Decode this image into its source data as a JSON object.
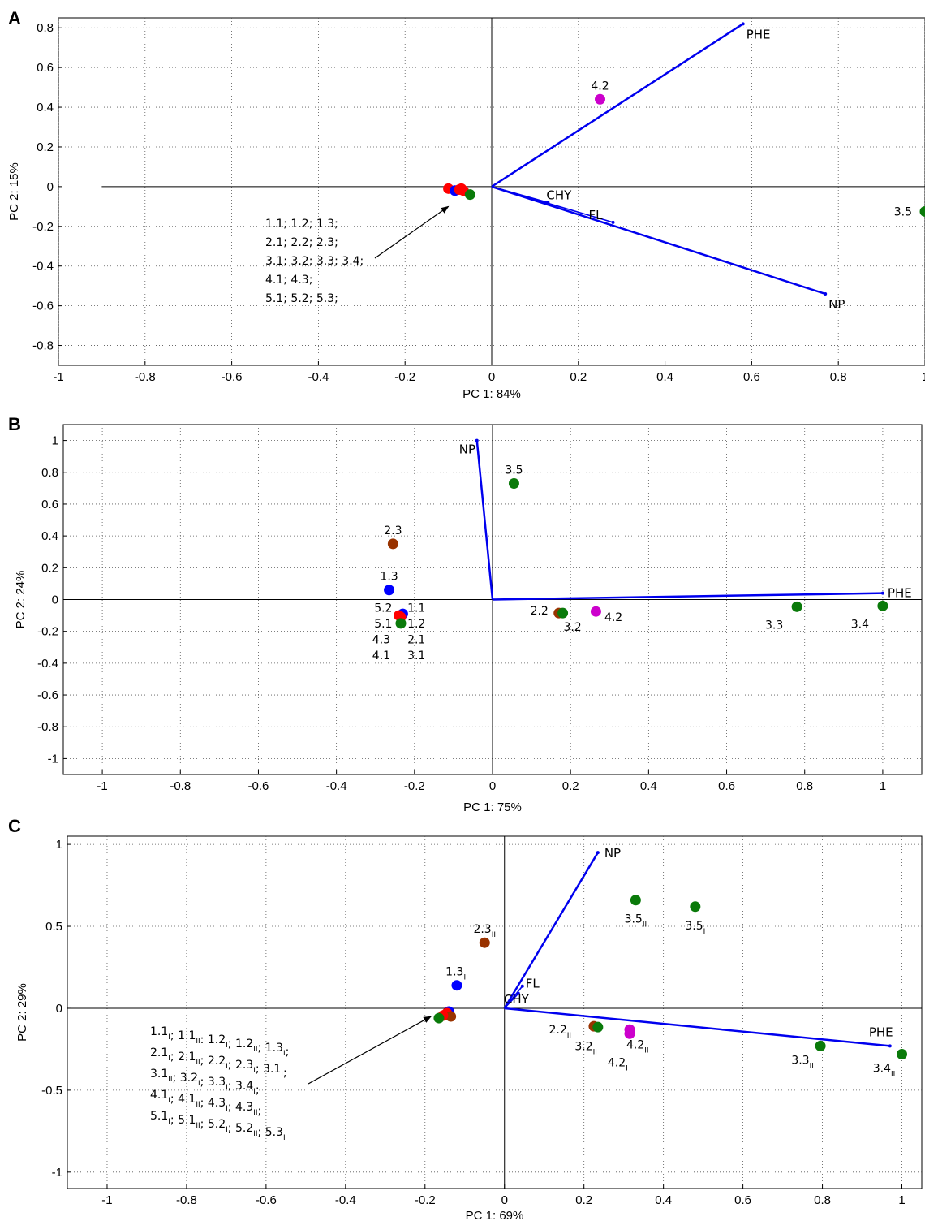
{
  "colors": {
    "red": "#ff0000",
    "blue": "#0000ff",
    "green": "#0a7a0a",
    "brown": "#993300",
    "magenta": "#cc00cc",
    "vector": "#0000ee"
  },
  "chart_data": [
    {
      "panel": "A",
      "type": "scatter",
      "xlabel": "PC 1: 84%",
      "ylabel": "PC 2: 15%",
      "xlim": [
        -1,
        1
      ],
      "ylim": [
        -0.9,
        0.85
      ],
      "xticks": [
        "-1",
        "-0.8",
        "-0.6",
        "-0.4",
        "-0.2",
        "0",
        "0.2",
        "0.4",
        "0.6",
        "0.8",
        "1"
      ],
      "xtick_values": [
        -1,
        -0.8,
        -0.6,
        -0.4,
        -0.2,
        0,
        0.2,
        0.4,
        0.6,
        0.8,
        1
      ],
      "yticks": [
        "-0.8",
        "-0.6",
        "-0.4",
        "-0.2",
        "0",
        "0.2",
        "0.4",
        "0.6",
        "0.8"
      ],
      "ytick_values": [
        -0.8,
        -0.6,
        -0.4,
        -0.2,
        0,
        0.2,
        0.4,
        0.6,
        0.8
      ],
      "hline_from": -0.9,
      "grid": true,
      "vectors": [
        {
          "label": "PHE",
          "x": 0.58,
          "y": 0.82,
          "dot": false
        },
        {
          "label": "NP",
          "x": 0.77,
          "y": -0.54,
          "dot": false
        },
        {
          "label": "CHY",
          "x": 0.13,
          "y": -0.08,
          "dot": true
        },
        {
          "label": "FL",
          "x": 0.28,
          "y": -0.18,
          "dot": true
        }
      ],
      "points": [
        {
          "x": -0.1,
          "y": -0.01,
          "color": "red"
        },
        {
          "x": -0.085,
          "y": -0.02,
          "color": "blue"
        },
        {
          "x": -0.075,
          "y": -0.015,
          "color": "red"
        },
        {
          "x": -0.065,
          "y": -0.02,
          "color": "red"
        },
        {
          "x": -0.05,
          "y": -0.04,
          "color": "green"
        },
        {
          "x": -0.07,
          "y": -0.01,
          "color": "red"
        },
        {
          "x": 0.25,
          "y": 0.44,
          "color": "magenta",
          "label": "4.2"
        },
        {
          "x": 1.0,
          "y": -0.125,
          "color": "green",
          "label": "3.5"
        }
      ],
      "annotation": [
        "1.1; 1.2; 1.3;",
        "2.1; 2.2; 2.3;",
        "3.1; 3.2; 3.3; 3.4;",
        "4.1; 4.3;",
        "5.1; 5.2; 5.3;"
      ]
    },
    {
      "panel": "B",
      "type": "scatter",
      "xlabel": "PC 1: 75%",
      "ylabel": "PC 2: 24%",
      "xlim": [
        -1.1,
        1.1
      ],
      "ylim": [
        -1.1,
        1.1
      ],
      "xticks": [
        "-1",
        "-0.8",
        "-0.6",
        "-0.4",
        "-0.2",
        "0",
        "0.2",
        "0.4",
        "0.6",
        "0.8",
        "1"
      ],
      "xtick_values": [
        -1,
        -0.8,
        -0.6,
        -0.4,
        -0.2,
        0,
        0.2,
        0.4,
        0.6,
        0.8,
        1
      ],
      "yticks": [
        "-1",
        "-0.8",
        "-0.6",
        "-0.4",
        "-0.2",
        "0",
        "0.2",
        "0.4",
        "0.6",
        "0.8",
        "1"
      ],
      "ytick_values": [
        -1,
        -0.8,
        -0.6,
        -0.4,
        -0.2,
        0,
        0.2,
        0.4,
        0.6,
        0.8,
        1
      ],
      "grid": true,
      "vectors": [
        {
          "label": "NP",
          "x": -0.04,
          "y": 1.0,
          "dot": false
        },
        {
          "label": "PHE",
          "x": 1.0,
          "y": 0.04,
          "dot": false
        }
      ],
      "points": [
        {
          "x": 0.055,
          "y": 0.73,
          "color": "green",
          "label": "3.5"
        },
        {
          "x": -0.255,
          "y": 0.35,
          "color": "brown",
          "label": "2.3"
        },
        {
          "x": -0.265,
          "y": 0.06,
          "color": "blue",
          "label": "1.3"
        },
        {
          "x": -0.23,
          "y": -0.09,
          "color": "blue"
        },
        {
          "x": -0.24,
          "y": -0.1,
          "color": "red"
        },
        {
          "x": -0.235,
          "y": -0.11,
          "color": "red"
        },
        {
          "x": -0.235,
          "y": -0.15,
          "color": "green"
        },
        {
          "x": 0.17,
          "y": -0.085,
          "color": "brown"
        },
        {
          "x": 0.18,
          "y": -0.085,
          "color": "green"
        },
        {
          "x": 0.265,
          "y": -0.075,
          "color": "magenta"
        },
        {
          "x": 0.78,
          "y": -0.045,
          "color": "green",
          "label": "3.3"
        },
        {
          "x": 1.0,
          "y": -0.04,
          "color": "green",
          "label": "3.4"
        }
      ],
      "labels": [
        {
          "text": "5.2",
          "x": -0.28,
          "y": -0.05
        },
        {
          "text": "5.1",
          "x": -0.28,
          "y": -0.15
        },
        {
          "text": "4.3",
          "x": -0.285,
          "y": -0.25
        },
        {
          "text": "4.1",
          "x": -0.285,
          "y": -0.35
        },
        {
          "text": "1.1",
          "x": -0.195,
          "y": -0.05
        },
        {
          "text": "1.2",
          "x": -0.195,
          "y": -0.15
        },
        {
          "text": "2.1",
          "x": -0.195,
          "y": -0.25
        },
        {
          "text": "3.1",
          "x": -0.195,
          "y": -0.35
        },
        {
          "text": "2.2",
          "x": 0.12,
          "y": -0.07
        },
        {
          "text": "3.2",
          "x": 0.205,
          "y": -0.17
        },
        {
          "text": "4.2",
          "x": 0.31,
          "y": -0.11
        }
      ]
    },
    {
      "panel": "C",
      "type": "scatter",
      "xlabel": "PC 1: 69%",
      "ylabel": "PC 2: 29%",
      "xlim": [
        -1.1,
        1.05
      ],
      "ylim": [
        -1.1,
        1.05
      ],
      "xticks": [
        "-1",
        "-0.8",
        "-0.6",
        "-0.4",
        "-0.2",
        "0",
        "0.2",
        "0.4",
        "0.6",
        "0.8",
        "1"
      ],
      "xtick_values": [
        -1,
        -0.8,
        -0.6,
        -0.4,
        -0.2,
        0,
        0.2,
        0.4,
        0.6,
        0.8,
        1
      ],
      "yticks": [
        "-1",
        "-0.5",
        "0",
        "0.5",
        "1"
      ],
      "ytick_values": [
        -1,
        -0.5,
        0,
        0.5,
        1
      ],
      "grid": true,
      "vectors": [
        {
          "label": "NP",
          "x": 0.235,
          "y": 0.95,
          "dot": false
        },
        {
          "label": "FL",
          "x": 0.045,
          "y": 0.135,
          "dot": true
        },
        {
          "label": "CHY",
          "x": 0.035,
          "y": 0.09,
          "dot": true
        },
        {
          "label": "PHE",
          "x": 0.97,
          "y": -0.23,
          "dot": false
        }
      ],
      "points": [
        {
          "x": 0.33,
          "y": 0.66,
          "color": "green",
          "label": "3.5",
          "sub": "II"
        },
        {
          "x": 0.48,
          "y": 0.62,
          "color": "green",
          "label": "3.5",
          "sub": "I"
        },
        {
          "x": -0.05,
          "y": 0.4,
          "color": "brown",
          "label": "2.3",
          "sub": "II"
        },
        {
          "x": -0.12,
          "y": 0.14,
          "color": "blue",
          "label": "1.3",
          "sub": "II"
        },
        {
          "x": -0.14,
          "y": -0.02,
          "color": "blue"
        },
        {
          "x": -0.145,
          "y": -0.03,
          "color": "red"
        },
        {
          "x": -0.15,
          "y": -0.04,
          "color": "red"
        },
        {
          "x": -0.135,
          "y": -0.05,
          "color": "brown"
        },
        {
          "x": -0.155,
          "y": -0.045,
          "color": "red"
        },
        {
          "x": -0.165,
          "y": -0.06,
          "color": "green"
        },
        {
          "x": 0.225,
          "y": -0.11,
          "color": "brown"
        },
        {
          "x": 0.235,
          "y": -0.115,
          "color": "green"
        },
        {
          "x": 0.315,
          "y": -0.13,
          "color": "magenta"
        },
        {
          "x": 0.315,
          "y": -0.155,
          "color": "magenta"
        },
        {
          "x": 0.795,
          "y": -0.23,
          "color": "green",
          "label": "3.3",
          "sub": "II"
        },
        {
          "x": 1.0,
          "y": -0.28,
          "color": "green",
          "label": "3.4",
          "sub": "II"
        }
      ],
      "labels": [
        {
          "text": "2.2",
          "sub": "II",
          "x": 0.14,
          "y": -0.13
        },
        {
          "text": "3.2",
          "sub": "II",
          "x": 0.205,
          "y": -0.23
        },
        {
          "text": "4.2",
          "sub": "II",
          "x": 0.335,
          "y": -0.22
        },
        {
          "text": "4.2",
          "sub": "I",
          "x": 0.285,
          "y": -0.33
        }
      ],
      "annotation": [
        [
          [
            "1.1",
            "I"
          ],
          "; ",
          [
            "1.1",
            "II"
          ],
          ": ",
          [
            "1.2",
            "I"
          ],
          "; ",
          [
            "1.2",
            "II"
          ],
          "; ",
          [
            "1.3",
            "I"
          ],
          ";"
        ],
        [
          [
            "2.1",
            "I"
          ],
          "; ",
          [
            "2.1",
            "II"
          ],
          "; ",
          [
            "2.2",
            "I"
          ],
          "; ",
          [
            "2.3",
            "I"
          ],
          "; ",
          [
            "3.1",
            "I"
          ],
          ";"
        ],
        [
          [
            "3.1",
            "II"
          ],
          "; ",
          [
            "3.2",
            "I"
          ],
          "; ",
          [
            "3.3",
            "I"
          ],
          "; ",
          [
            "3.4",
            "I"
          ],
          ";"
        ],
        [
          [
            "4.1",
            "I"
          ],
          "; ",
          [
            "4.1",
            "II"
          ],
          "; ",
          [
            "4.3",
            "I"
          ],
          "; ",
          [
            "4.3",
            "II"
          ],
          ";"
        ],
        [
          [
            "5.1",
            "I"
          ],
          "; ",
          [
            "5.1",
            "II"
          ],
          "; ",
          [
            "5.2",
            "I"
          ],
          "; ",
          [
            "5.2",
            "II"
          ],
          "; ",
          [
            "5.3",
            "I"
          ]
        ]
      ]
    }
  ]
}
